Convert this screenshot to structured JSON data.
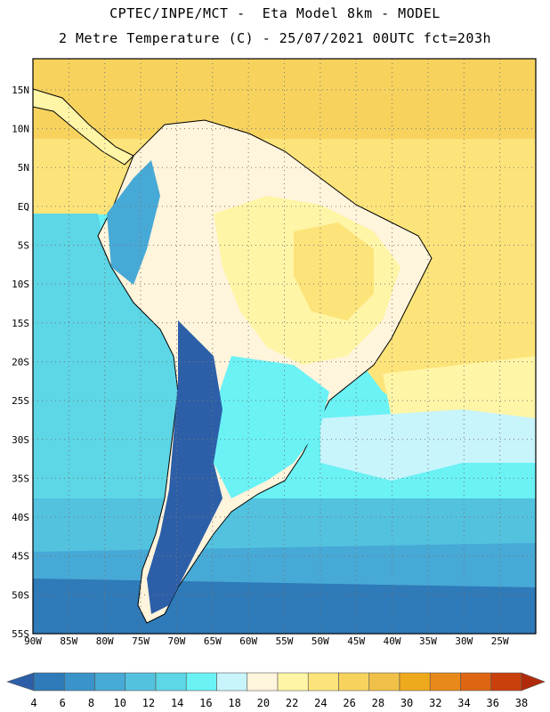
{
  "header": {
    "line1": "CPTEC/INPE/MCT -  Eta Model 8km - MODEL",
    "line2": "2 Metre Temperature (C) - 25/07/2021 00UTC fct=203h"
  },
  "map": {
    "lat_labels": [
      "15N",
      "10N",
      "5N",
      "EQ",
      "5S",
      "10S",
      "15S",
      "20S",
      "25S",
      "30S",
      "35S",
      "40S",
      "45S",
      "50S",
      "55S"
    ],
    "lon_labels": [
      "90W",
      "85W",
      "80W",
      "75W",
      "70W",
      "65W",
      "60W",
      "55W",
      "50W",
      "45W",
      "40W",
      "35W",
      "30W",
      "25W"
    ],
    "lat_range": [
      -55,
      19
    ],
    "lon_range": [
      -90,
      -20
    ],
    "grid": "dotted, every 5 degrees"
  },
  "colorbar": {
    "levels": [
      "4",
      "6",
      "8",
      "10",
      "12",
      "14",
      "16",
      "18",
      "20",
      "22",
      "24",
      "26",
      "28",
      "30",
      "32",
      "34",
      "36",
      "38"
    ],
    "colors": [
      "#2c5fa8",
      "#2f7ab8",
      "#3a93c9",
      "#47a9d6",
      "#53c2df",
      "#5dd6e6",
      "#6af2f5",
      "#c8f4fb",
      "#fff4dc",
      "#fff5a6",
      "#fde47a",
      "#f7d35e",
      "#f0c048",
      "#efa91c",
      "#e88a1a",
      "#de6612",
      "#c9400c",
      "#b12a0a"
    ]
  },
  "chart_data": {
    "type": "heatmap",
    "variable": "2 Metre Temperature (C)",
    "levels": [
      4,
      6,
      8,
      10,
      12,
      14,
      16,
      18,
      20,
      22,
      24,
      26,
      28,
      30,
      32,
      34,
      36,
      38
    ]
  }
}
